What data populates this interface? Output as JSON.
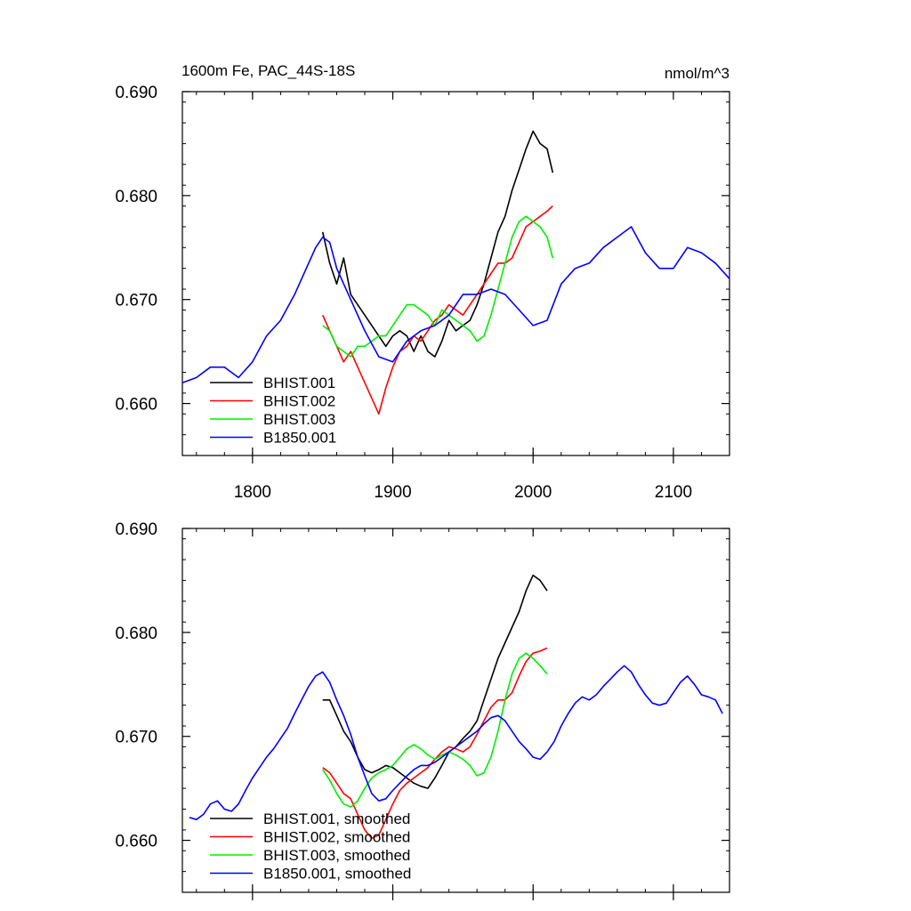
{
  "header": {
    "title": "1600m Fe, PAC_44S-18S",
    "units": "nmol/m^3"
  },
  "colors": {
    "BHIST.001": "#000000",
    "BHIST.002": "#ff0000",
    "BHIST.003": "#00ee00",
    "B1850.001": "#0000ff"
  },
  "chart_data": [
    {
      "type": "line",
      "title": "1600m Fe, PAC_44S-18S",
      "right_label": "nmol/m^3",
      "xlim": [
        1750,
        2140
      ],
      "ylim": [
        0.655,
        0.69
      ],
      "x_ticks": [
        1800,
        1900,
        2000,
        2100
      ],
      "y_ticks": [
        0.66,
        0.67,
        0.68,
        0.69
      ],
      "x_tick_labels": [
        "1800",
        "1900",
        "2000",
        "2100"
      ],
      "y_tick_labels": [
        "0.660",
        "0.670",
        "0.680",
        "0.690"
      ],
      "grid": false,
      "legend_position": "bottom-left",
      "series": [
        {
          "name": "BHIST.001",
          "x": [
            1850,
            1855,
            1860,
            1865,
            1870,
            1875,
            1880,
            1885,
            1890,
            1895,
            1900,
            1905,
            1910,
            1915,
            1920,
            1925,
            1930,
            1935,
            1940,
            1945,
            1950,
            1955,
            1960,
            1965,
            1970,
            1975,
            1980,
            1985,
            1990,
            1995,
            2000,
            2005,
            2010,
            2014
          ],
          "y": [
            0.6765,
            0.6735,
            0.6715,
            0.674,
            0.6705,
            0.6695,
            0.6685,
            0.6675,
            0.6665,
            0.6655,
            0.6665,
            0.667,
            0.6665,
            0.665,
            0.6665,
            0.665,
            0.6645,
            0.666,
            0.668,
            0.667,
            0.6675,
            0.668,
            0.6695,
            0.6715,
            0.674,
            0.6765,
            0.678,
            0.6805,
            0.6825,
            0.6845,
            0.6862,
            0.685,
            0.6845,
            0.6822
          ]
        },
        {
          "name": "BHIST.002",
          "x": [
            1850,
            1855,
            1860,
            1865,
            1870,
            1875,
            1880,
            1885,
            1890,
            1895,
            1900,
            1905,
            1910,
            1915,
            1920,
            1925,
            1930,
            1935,
            1940,
            1945,
            1950,
            1955,
            1960,
            1965,
            1970,
            1975,
            1980,
            1985,
            1990,
            1995,
            2000,
            2005,
            2010,
            2014
          ],
          "y": [
            0.6685,
            0.667,
            0.6655,
            0.664,
            0.665,
            0.6635,
            0.662,
            0.6605,
            0.659,
            0.6615,
            0.6635,
            0.665,
            0.6655,
            0.6665,
            0.666,
            0.667,
            0.668,
            0.6685,
            0.6695,
            0.669,
            0.6685,
            0.6695,
            0.6705,
            0.6715,
            0.6725,
            0.6735,
            0.6735,
            0.674,
            0.6755,
            0.677,
            0.6775,
            0.678,
            0.6785,
            0.679
          ]
        },
        {
          "name": "BHIST.003",
          "x": [
            1850,
            1855,
            1860,
            1865,
            1870,
            1875,
            1880,
            1885,
            1890,
            1895,
            1900,
            1905,
            1910,
            1915,
            1920,
            1925,
            1930,
            1935,
            1940,
            1945,
            1950,
            1955,
            1960,
            1965,
            1970,
            1975,
            1980,
            1985,
            1990,
            1995,
            2000,
            2005,
            2010,
            2014
          ],
          "y": [
            0.6675,
            0.667,
            0.6655,
            0.665,
            0.6645,
            0.6655,
            0.6655,
            0.666,
            0.6665,
            0.6665,
            0.6675,
            0.6685,
            0.6695,
            0.6695,
            0.669,
            0.6685,
            0.6675,
            0.669,
            0.6685,
            0.668,
            0.6675,
            0.667,
            0.666,
            0.6665,
            0.6685,
            0.671,
            0.6735,
            0.676,
            0.6775,
            0.678,
            0.6775,
            0.677,
            0.676,
            0.674
          ]
        },
        {
          "name": "B1850.001",
          "x": [
            1750,
            1760,
            1770,
            1780,
            1790,
            1800,
            1810,
            1820,
            1830,
            1840,
            1845,
            1850,
            1855,
            1860,
            1870,
            1880,
            1890,
            1900,
            1910,
            1920,
            1930,
            1940,
            1950,
            1960,
            1970,
            1980,
            1990,
            2000,
            2010,
            2020,
            2030,
            2040,
            2050,
            2060,
            2070,
            2080,
            2090,
            2100,
            2110,
            2120,
            2130,
            2140
          ],
          "y": [
            0.662,
            0.6625,
            0.6635,
            0.6635,
            0.6625,
            0.664,
            0.6665,
            0.668,
            0.6705,
            0.6735,
            0.675,
            0.676,
            0.6755,
            0.673,
            0.67,
            0.667,
            0.6645,
            0.664,
            0.666,
            0.667,
            0.6675,
            0.6685,
            0.6705,
            0.6705,
            0.671,
            0.6705,
            0.669,
            0.6675,
            0.668,
            0.6715,
            0.673,
            0.6735,
            0.675,
            0.676,
            0.677,
            0.6745,
            0.673,
            0.673,
            0.675,
            0.6745,
            0.6735,
            0.672
          ]
        }
      ]
    },
    {
      "type": "line",
      "xlim": [
        1750,
        2140
      ],
      "ylim": [
        0.655,
        0.69
      ],
      "x_ticks": [
        1800,
        1900,
        2000,
        2100
      ],
      "y_ticks": [
        0.66,
        0.67,
        0.68,
        0.69
      ],
      "y_tick_labels": [
        "0.660",
        "0.670",
        "0.680",
        "0.690"
      ],
      "grid": false,
      "legend_position": "bottom-left",
      "series": [
        {
          "name": "BHIST.001, smoothed",
          "x": [
            1850,
            1855,
            1860,
            1865,
            1870,
            1875,
            1880,
            1885,
            1890,
            1895,
            1900,
            1905,
            1910,
            1915,
            1920,
            1925,
            1930,
            1935,
            1940,
            1945,
            1950,
            1955,
            1960,
            1965,
            1970,
            1975,
            1980,
            1985,
            1990,
            1995,
            2000,
            2005,
            2010
          ],
          "y": [
            0.6735,
            0.6735,
            0.672,
            0.6705,
            0.6695,
            0.668,
            0.6668,
            0.6665,
            0.6668,
            0.6672,
            0.667,
            0.6665,
            0.666,
            0.6655,
            0.6652,
            0.665,
            0.666,
            0.6672,
            0.6685,
            0.669,
            0.6698,
            0.6705,
            0.6715,
            0.6735,
            0.6755,
            0.6775,
            0.679,
            0.6805,
            0.682,
            0.684,
            0.6855,
            0.685,
            0.684
          ]
        },
        {
          "name": "BHIST.002, smoothed",
          "x": [
            1850,
            1855,
            1860,
            1865,
            1870,
            1875,
            1880,
            1885,
            1890,
            1895,
            1900,
            1905,
            1910,
            1915,
            1920,
            1925,
            1930,
            1935,
            1940,
            1945,
            1950,
            1955,
            1960,
            1965,
            1970,
            1975,
            1980,
            1985,
            1990,
            1995,
            2000,
            2005,
            2010
          ],
          "y": [
            0.667,
            0.6665,
            0.6655,
            0.6645,
            0.664,
            0.6625,
            0.661,
            0.6602,
            0.6605,
            0.662,
            0.6635,
            0.6648,
            0.6655,
            0.666,
            0.6665,
            0.667,
            0.6678,
            0.6685,
            0.669,
            0.6688,
            0.6685,
            0.669,
            0.6702,
            0.6715,
            0.6728,
            0.6735,
            0.6735,
            0.6742,
            0.6758,
            0.6772,
            0.678,
            0.6782,
            0.6785
          ]
        },
        {
          "name": "BHIST.003, smoothed",
          "x": [
            1850,
            1855,
            1860,
            1865,
            1870,
            1875,
            1880,
            1885,
            1890,
            1895,
            1900,
            1905,
            1910,
            1915,
            1920,
            1925,
            1930,
            1935,
            1940,
            1945,
            1950,
            1955,
            1960,
            1965,
            1970,
            1975,
            1980,
            1985,
            1990,
            1995,
            2000,
            2005,
            2010
          ],
          "y": [
            0.6668,
            0.6658,
            0.6645,
            0.6635,
            0.6632,
            0.6638,
            0.665,
            0.666,
            0.6665,
            0.6668,
            0.6672,
            0.668,
            0.6688,
            0.6692,
            0.6688,
            0.6682,
            0.6678,
            0.6682,
            0.6685,
            0.6682,
            0.6678,
            0.6672,
            0.6662,
            0.6665,
            0.668,
            0.6705,
            0.6735,
            0.676,
            0.6775,
            0.678,
            0.6775,
            0.6768,
            0.676
          ]
        },
        {
          "name": "B1850.001, smoothed",
          "x": [
            1755,
            1760,
            1765,
            1770,
            1775,
            1780,
            1785,
            1790,
            1795,
            1800,
            1805,
            1810,
            1815,
            1820,
            1825,
            1830,
            1835,
            1840,
            1845,
            1850,
            1855,
            1860,
            1865,
            1870,
            1875,
            1880,
            1885,
            1890,
            1895,
            1900,
            1905,
            1910,
            1915,
            1920,
            1925,
            1930,
            1935,
            1940,
            1945,
            1950,
            1955,
            1960,
            1965,
            1970,
            1975,
            1980,
            1985,
            1990,
            1995,
            2000,
            2005,
            2010,
            2015,
            2020,
            2025,
            2030,
            2035,
            2040,
            2045,
            2050,
            2055,
            2060,
            2065,
            2070,
            2075,
            2080,
            2085,
            2090,
            2095,
            2100,
            2105,
            2110,
            2115,
            2120,
            2125,
            2130,
            2135
          ],
          "y": [
            0.6622,
            0.662,
            0.6625,
            0.6635,
            0.6638,
            0.663,
            0.6628,
            0.6635,
            0.6648,
            0.666,
            0.667,
            0.668,
            0.6688,
            0.6698,
            0.6708,
            0.6722,
            0.6735,
            0.6748,
            0.6758,
            0.6762,
            0.6752,
            0.6735,
            0.672,
            0.6702,
            0.668,
            0.6662,
            0.6645,
            0.6638,
            0.664,
            0.6648,
            0.6655,
            0.6662,
            0.6668,
            0.6672,
            0.6672,
            0.6675,
            0.668,
            0.6685,
            0.669,
            0.6695,
            0.67,
            0.6705,
            0.6712,
            0.6718,
            0.672,
            0.6715,
            0.6705,
            0.6695,
            0.6688,
            0.668,
            0.6678,
            0.6685,
            0.6695,
            0.671,
            0.6722,
            0.6732,
            0.6738,
            0.6735,
            0.674,
            0.6748,
            0.6755,
            0.6762,
            0.6768,
            0.6762,
            0.675,
            0.674,
            0.6732,
            0.673,
            0.6732,
            0.6742,
            0.6752,
            0.6758,
            0.675,
            0.674,
            0.6738,
            0.6735,
            0.6722
          ]
        }
      ]
    }
  ]
}
